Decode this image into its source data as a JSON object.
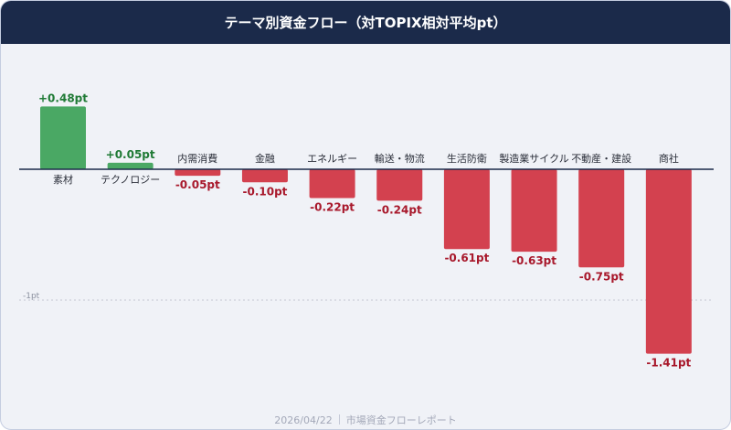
{
  "header": {
    "title": "テーマ別資金フロー（対TOPIX相対平均pt）"
  },
  "chart_data": {
    "type": "bar",
    "title": "テーマ別資金フロー（対TOPIX相対平均pt）",
    "categories": [
      "素材",
      "テクノロジー",
      "内需消費",
      "金融",
      "エネルギー",
      "輸送・物流",
      "生活防衛",
      "製造業サイクル",
      "不動産・建設",
      "商社"
    ],
    "values": [
      0.48,
      0.05,
      -0.05,
      -0.1,
      -0.22,
      -0.24,
      -0.61,
      -0.63,
      -0.75,
      -1.41
    ],
    "value_labels": [
      "+0.48pt",
      "+0.05pt",
      "-0.05pt",
      "-0.10pt",
      "-0.22pt",
      "-0.24pt",
      "-0.61pt",
      "-0.63pt",
      "-0.75pt",
      "-1.41pt"
    ],
    "reference_lines": [
      {
        "value": -1,
        "label": "-1pt"
      }
    ],
    "unit": "pt",
    "grid": false,
    "colors": {
      "positive": "#4aa864",
      "negative": "#d3414f",
      "positive_text": "#1f7a35",
      "negative_text": "#a8182b",
      "zero_line": "#1b2a4a"
    }
  },
  "footer": {
    "date": "2026/04/22",
    "source": "市場資金フローレポート"
  }
}
